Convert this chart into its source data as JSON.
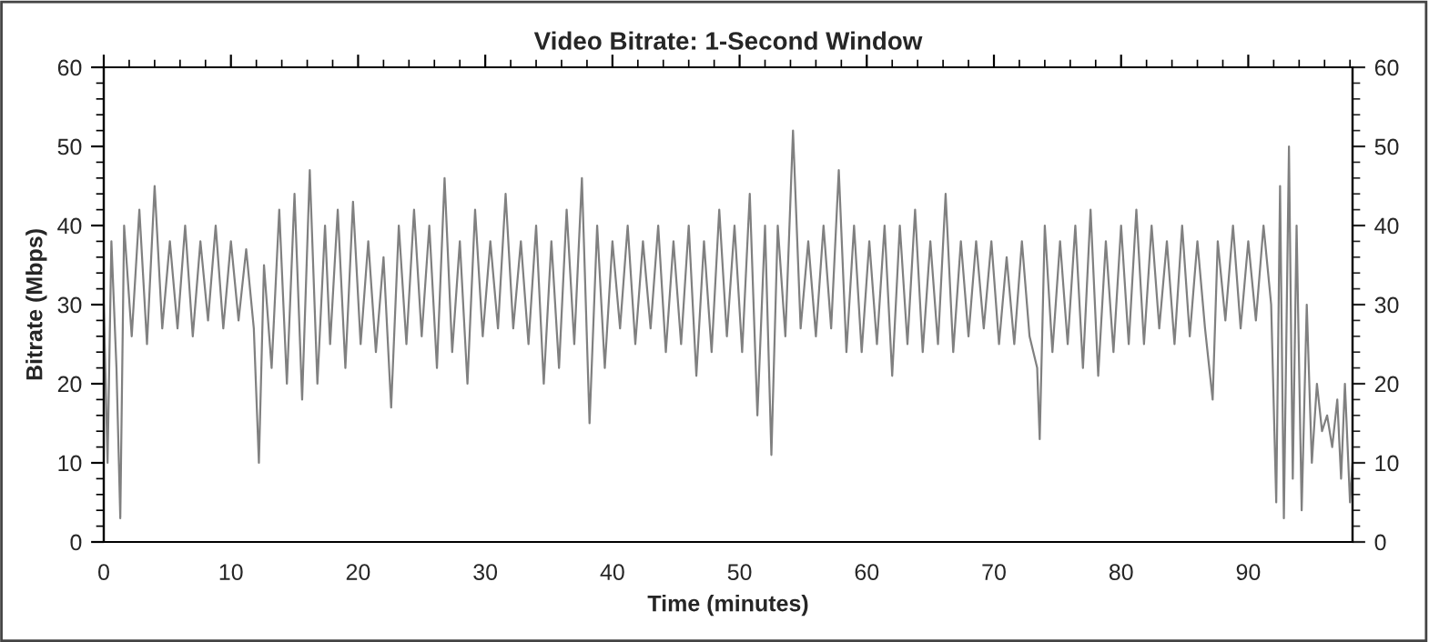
{
  "chart_data": {
    "type": "line",
    "title": "Video Bitrate: 1-Second Window",
    "xlabel": "Time (minutes)",
    "ylabel": "Bitrate (Mbps)",
    "xlim": [
      0,
      98.2
    ],
    "ylim": [
      0,
      60
    ],
    "y2lim": [
      0,
      60
    ],
    "xticks": [
      0,
      {
        "value": 2,
        "label": null
      },
      {
        "value": 4,
        "label": null
      },
      {
        "value": 6,
        "label": null
      },
      {
        "value": 8,
        "label": null
      },
      10,
      {
        "value": 12,
        "label": null
      },
      {
        "value": 14,
        "label": null
      },
      {
        "value": 16,
        "label": null
      },
      {
        "value": 18,
        "label": null
      },
      20,
      {
        "value": 22,
        "label": null
      },
      {
        "value": 24,
        "label": null
      },
      {
        "value": 26,
        "label": null
      },
      {
        "value": 28,
        "label": null
      },
      30,
      {
        "value": 32,
        "label": null
      },
      {
        "value": 34,
        "label": null
      },
      {
        "value": 36,
        "label": null
      },
      {
        "value": 38,
        "label": null
      },
      40,
      {
        "value": 42,
        "label": null
      },
      {
        "value": 44,
        "label": null
      },
      {
        "value": 46,
        "label": null
      },
      {
        "value": 48,
        "label": null
      },
      50,
      {
        "value": 52,
        "label": null
      },
      {
        "value": 54,
        "label": null
      },
      {
        "value": 56,
        "label": null
      },
      {
        "value": 58,
        "label": null
      },
      60,
      {
        "value": 62,
        "label": null
      },
      {
        "value": 64,
        "label": null
      },
      {
        "value": 66,
        "label": null
      },
      {
        "value": 68,
        "label": null
      },
      70,
      {
        "value": 72,
        "label": null
      },
      {
        "value": 74,
        "label": null
      },
      {
        "value": 76,
        "label": null
      },
      {
        "value": 78,
        "label": null
      },
      80,
      {
        "value": 82,
        "label": null
      },
      {
        "value": 84,
        "label": null
      },
      {
        "value": 86,
        "label": null
      },
      {
        "value": 88,
        "label": null
      },
      90,
      {
        "value": 92,
        "label": null
      },
      {
        "value": 94,
        "label": null
      },
      {
        "value": 96,
        "label": null
      },
      {
        "value": 98,
        "label": null
      }
    ],
    "yticks": [
      0,
      {
        "value": 2,
        "label": null
      },
      {
        "value": 4,
        "label": null
      },
      {
        "value": 6,
        "label": null
      },
      {
        "value": 8,
        "label": null
      },
      10,
      {
        "value": 12,
        "label": null
      },
      {
        "value": 14,
        "label": null
      },
      {
        "value": 16,
        "label": null
      },
      {
        "value": 18,
        "label": null
      },
      20,
      {
        "value": 22,
        "label": null
      },
      {
        "value": 24,
        "label": null
      },
      {
        "value": 26,
        "label": null
      },
      {
        "value": 28,
        "label": null
      },
      30,
      {
        "value": 32,
        "label": null
      },
      {
        "value": 34,
        "label": null
      },
      {
        "value": 36,
        "label": null
      },
      {
        "value": 38,
        "label": null
      },
      40,
      {
        "value": 42,
        "label": null
      },
      {
        "value": 44,
        "label": null
      },
      {
        "value": 46,
        "label": null
      },
      {
        "value": 48,
        "label": null
      },
      50,
      {
        "value": 52,
        "label": null
      },
      {
        "value": 54,
        "label": null
      },
      {
        "value": 56,
        "label": null
      },
      {
        "value": 58,
        "label": null
      },
      60
    ],
    "y2ticks": [
      0,
      {
        "value": 2,
        "label": null
      },
      {
        "value": 4,
        "label": null
      },
      {
        "value": 6,
        "label": null
      },
      {
        "value": 8,
        "label": null
      },
      10,
      {
        "value": 12,
        "label": null
      },
      {
        "value": 14,
        "label": null
      },
      {
        "value": 16,
        "label": null
      },
      {
        "value": 18,
        "label": null
      },
      20,
      {
        "value": 22,
        "label": null
      },
      {
        "value": 24,
        "label": null
      },
      {
        "value": 26,
        "label": null
      },
      {
        "value": 28,
        "label": null
      },
      30,
      {
        "value": 32,
        "label": null
      },
      {
        "value": 34,
        "label": null
      },
      {
        "value": 36,
        "label": null
      },
      {
        "value": 38,
        "label": null
      },
      40,
      {
        "value": 42,
        "label": null
      },
      {
        "value": 44,
        "label": null
      },
      {
        "value": 46,
        "label": null
      },
      {
        "value": 48,
        "label": null
      },
      50,
      {
        "value": 52,
        "label": null
      },
      {
        "value": 54,
        "label": null
      },
      {
        "value": 56,
        "label": null
      },
      {
        "value": 58,
        "label": null
      },
      60
    ],
    "grid": false,
    "legend": false,
    "marker": "none",
    "line_style": "solid",
    "series": [
      {
        "color": "#808080",
        "x": [
          0,
          0.3,
          0.6,
          1.0,
          1.3,
          1.6,
          2.2,
          2.8,
          3.4,
          4.0,
          4.6,
          5.2,
          5.8,
          6.4,
          7.0,
          7.6,
          8.2,
          8.8,
          9.4,
          10.0,
          10.6,
          11.2,
          11.8,
          12.2,
          12.6,
          13.2,
          13.8,
          14.4,
          15.0,
          15.6,
          16.2,
          16.8,
          17.4,
          17.8,
          18.4,
          19.0,
          19.6,
          20.2,
          20.8,
          21.4,
          22.0,
          22.6,
          23.2,
          23.8,
          24.4,
          25.0,
          25.6,
          26.2,
          26.8,
          27.4,
          28.0,
          28.6,
          29.2,
          29.8,
          30.4,
          31.0,
          31.6,
          32.2,
          32.8,
          33.4,
          34.0,
          34.6,
          35.2,
          35.8,
          36.4,
          37.0,
          37.6,
          38.2,
          38.8,
          39.4,
          40.0,
          40.6,
          41.2,
          41.8,
          42.4,
          43.0,
          43.6,
          44.2,
          44.8,
          45.4,
          46.0,
          46.6,
          47.2,
          47.8,
          48.4,
          49.0,
          49.6,
          50.2,
          50.8,
          51.4,
          52.0,
          52.5,
          53.0,
          53.6,
          54.2,
          54.8,
          55.4,
          56.0,
          56.6,
          57.2,
          57.8,
          58.4,
          59.0,
          59.6,
          60.2,
          60.8,
          61.4,
          62.0,
          62.6,
          63.2,
          63.8,
          64.4,
          65.0,
          65.6,
          66.2,
          66.8,
          67.4,
          68.0,
          68.6,
          69.2,
          69.8,
          70.4,
          71.0,
          71.6,
          72.2,
          72.8,
          73.4,
          73.6,
          74.0,
          74.6,
          75.2,
          75.8,
          76.4,
          77.0,
          77.6,
          78.2,
          78.8,
          79.4,
          80.0,
          80.6,
          81.2,
          81.8,
          82.4,
          83.0,
          83.6,
          84.2,
          84.8,
          85.4,
          86.0,
          86.6,
          87.2,
          87.6,
          88.2,
          88.8,
          89.4,
          90.0,
          90.6,
          91.2,
          91.8,
          92.2,
          92.5,
          92.8,
          93.2,
          93.5,
          93.8,
          94.2,
          94.6,
          95.0,
          95.4,
          95.8,
          96.2,
          96.6,
          97.0,
          97.3,
          97.6,
          98.0,
          98.2
        ],
        "values": [
          30,
          10,
          38,
          22,
          3,
          40,
          26,
          42,
          25,
          45,
          27,
          38,
          27,
          40,
          26,
          38,
          28,
          40,
          27,
          38,
          28,
          37,
          27,
          10,
          35,
          22,
          42,
          20,
          44,
          18,
          47,
          20,
          40,
          25,
          42,
          22,
          43,
          25,
          38,
          24,
          36,
          17,
          40,
          25,
          42,
          26,
          40,
          22,
          46,
          24,
          38,
          20,
          42,
          26,
          38,
          27,
          44,
          27,
          38,
          25,
          40,
          20,
          38,
          22,
          42,
          25,
          46,
          15,
          40,
          22,
          38,
          27,
          40,
          25,
          38,
          27,
          40,
          24,
          38,
          25,
          40,
          21,
          38,
          24,
          42,
          26,
          40,
          24,
          44,
          16,
          40,
          11,
          40,
          26,
          52,
          27,
          38,
          26,
          40,
          27,
          47,
          24,
          40,
          24,
          38,
          25,
          40,
          21,
          40,
          25,
          42,
          24,
          38,
          25,
          44,
          24,
          38,
          26,
          38,
          27,
          38,
          25,
          36,
          25,
          38,
          26,
          22,
          13,
          40,
          24,
          38,
          25,
          40,
          22,
          42,
          21,
          38,
          24,
          40,
          25,
          42,
          25,
          40,
          27,
          38,
          25,
          40,
          26,
          38,
          27,
          18,
          38,
          28,
          40,
          27,
          38,
          28,
          40,
          30,
          5,
          45,
          3,
          50,
          8,
          40,
          4,
          30,
          10,
          20,
          14,
          16,
          12,
          18,
          8,
          20,
          5,
          10
        ]
      }
    ]
  }
}
